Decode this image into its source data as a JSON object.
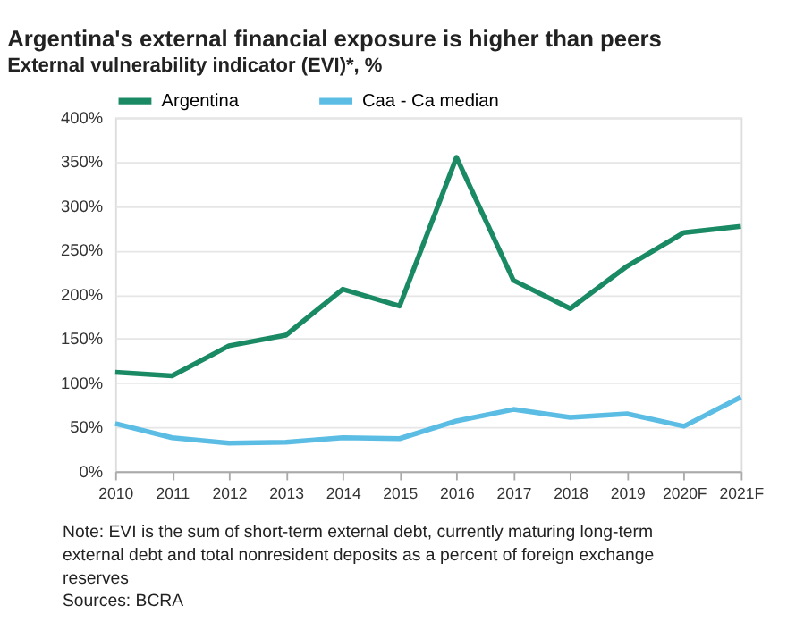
{
  "chart_data": {
    "type": "line",
    "title": "Argentina's external financial exposure is higher than peers",
    "subtitle": "External vulnerability indicator (EVI)*, %",
    "categories": [
      "2010",
      "2011",
      "2012",
      "2013",
      "2014",
      "2015",
      "2016",
      "2017",
      "2018",
      "2019",
      "2020F",
      "2021F"
    ],
    "series": [
      {
        "name": "Argentina",
        "color": "#1a8a64",
        "values": [
          112,
          108,
          142,
          154,
          206,
          187,
          355,
          216,
          184,
          232,
          270,
          277
        ]
      },
      {
        "name": "Caa - Ca median",
        "color": "#5bbce4",
        "values": [
          54,
          38,
          32,
          33,
          38,
          37,
          57,
          70,
          61,
          65,
          51,
          84
        ]
      }
    ],
    "ylim": [
      0,
      400
    ],
    "yticks": [
      {
        "value": 0,
        "label": "0%"
      },
      {
        "value": 50,
        "label": "50%"
      },
      {
        "value": 100,
        "label": "100%"
      },
      {
        "value": 150,
        "label": "150%"
      },
      {
        "value": 200,
        "label": "200%"
      },
      {
        "value": 250,
        "label": "250%"
      },
      {
        "value": 300,
        "label": "300%"
      },
      {
        "value": 350,
        "label": "350%"
      },
      {
        "value": 400,
        "label": "400%"
      }
    ],
    "grid": "y",
    "legend": "top",
    "marker": "none",
    "line_style": "solid",
    "annotations": [
      "Note: EVI is the sum of short-term external debt, currently maturing long-term external debt and total nonresident deposits as a percent of foreign exchange reserves",
      "Sources: BCRA"
    ]
  }
}
